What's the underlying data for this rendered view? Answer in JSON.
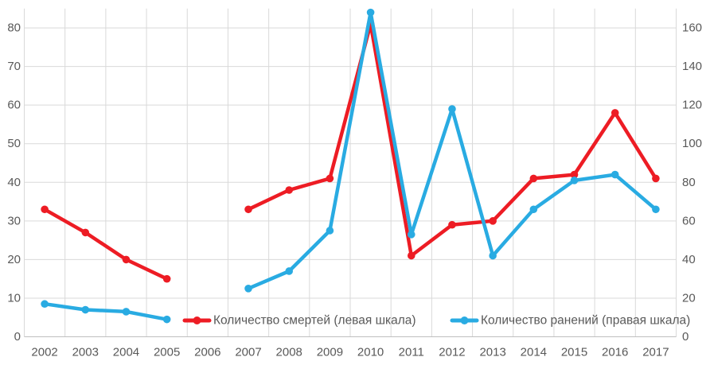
{
  "chart_data": {
    "type": "line",
    "title": "",
    "categories": [
      "2002",
      "2003",
      "2004",
      "2005",
      "2006",
      "2007",
      "2008",
      "2009",
      "2010",
      "2011",
      "2012",
      "2013",
      "2014",
      "2015",
      "2016",
      "2017"
    ],
    "series": [
      {
        "name": "Количество смертей (левая шкала)",
        "axis": "left",
        "color": "#ED1C24",
        "values": [
          33,
          27,
          20,
          15,
          null,
          33,
          38,
          41,
          81,
          21,
          29,
          30,
          41,
          42,
          58,
          41
        ]
      },
      {
        "name": "Количество ранений (правая шкала)",
        "axis": "right",
        "color": "#29ABE2",
        "values": [
          17,
          14,
          13,
          9,
          null,
          25,
          34,
          55,
          168,
          53,
          118,
          42,
          66,
          81,
          84,
          66
        ]
      }
    ],
    "left_axis": {
      "ticks": [
        0,
        10,
        20,
        30,
        40,
        50,
        60,
        70,
        80
      ],
      "min": 0,
      "scale_max": 85
    },
    "right_axis": {
      "ticks": [
        0,
        20,
        40,
        60,
        80,
        100,
        120,
        140,
        160
      ],
      "min": 0,
      "scale_max": 170
    },
    "grid": true,
    "legend_position": "bottom-inside",
    "colors": {
      "grid": "#d9d9d9",
      "axis_line": "#bfbfbf",
      "tick_label": "#595959",
      "background": "#ffffff"
    }
  }
}
